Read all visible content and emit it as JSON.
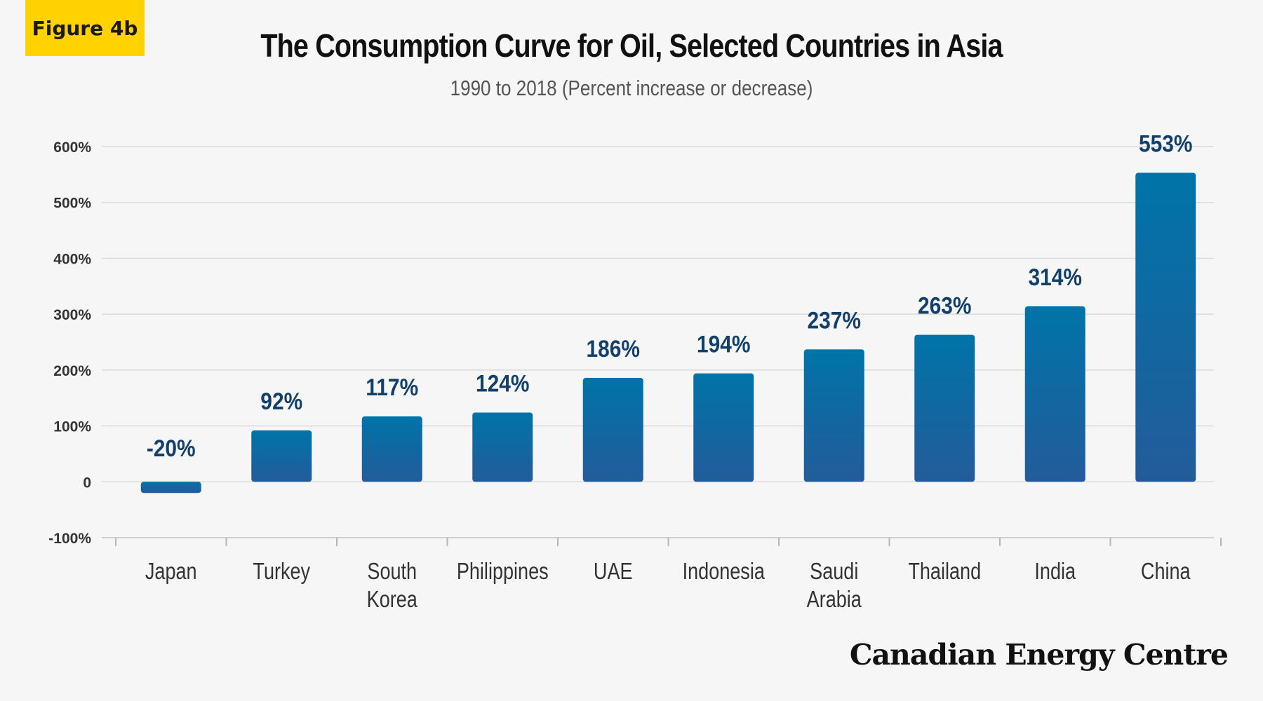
{
  "badge": "Figure 4b",
  "brand": "Canadian Energy Centre",
  "colors": {
    "badge": "#ffd200",
    "bar_top": "#0074a8",
    "bar_bottom": "#235b9a",
    "value_label": "#12406b"
  },
  "chart_data": {
    "type": "bar",
    "title": "The Consumption Curve for Oil, Selected Countries in Asia",
    "subtitle": "1990 to 2018 (Percent increase or decrease)",
    "categories": [
      [
        "Japan"
      ],
      [
        "Turkey"
      ],
      [
        "South",
        "Korea"
      ],
      [
        "Philippines"
      ],
      [
        "UAE"
      ],
      [
        "Indonesia"
      ],
      [
        "Saudi",
        "Arabia"
      ],
      [
        "Thailand"
      ],
      [
        "India"
      ],
      [
        "China"
      ]
    ],
    "values": [
      -20,
      92,
      117,
      124,
      186,
      194,
      237,
      263,
      314,
      553
    ],
    "value_labels": [
      "-20%",
      "92%",
      "117%",
      "124%",
      "186%",
      "194%",
      "237%",
      "263%",
      "314%",
      "553%"
    ],
    "yticks": [
      600,
      500,
      400,
      300,
      200,
      100,
      0,
      -100
    ],
    "ytick_labels": [
      "600%",
      "500%",
      "400%",
      "300%",
      "200%",
      "100%",
      "0",
      "-100%"
    ],
    "ylim": [
      -100,
      600
    ],
    "grid": true
  }
}
